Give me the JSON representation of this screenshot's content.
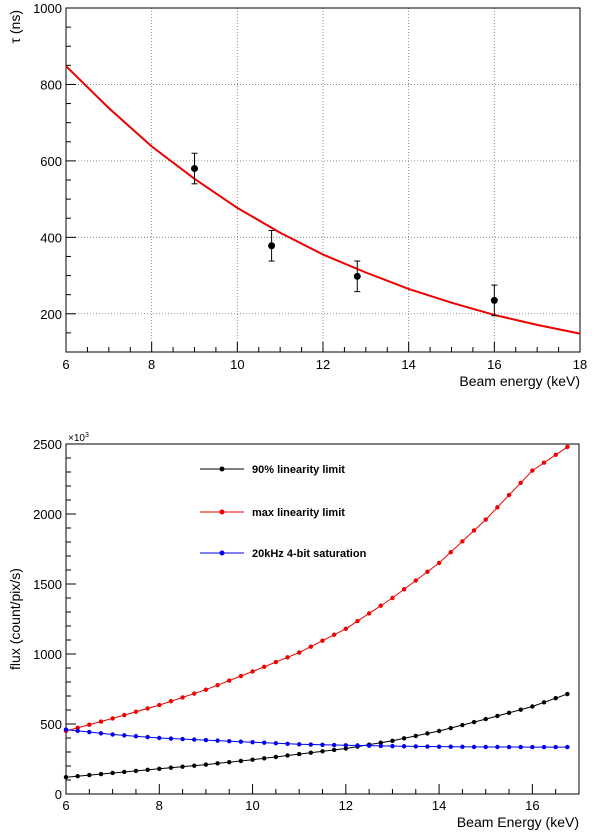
{
  "chart_data": [
    {
      "type": "scatter",
      "xlabel": "Beam energy (keV)",
      "ylabel": "τ (ns)",
      "xlim": [
        6,
        18
      ],
      "ylim": [
        100,
        1000
      ],
      "xticks": [
        6,
        8,
        10,
        12,
        14,
        16,
        18
      ],
      "yticks": [
        200,
        400,
        600,
        800,
        1000
      ],
      "grid": true,
      "series": [
        {
          "kind": "points-with-errors",
          "color": "#000000",
          "points": [
            {
              "x": 9.0,
              "y": 580,
              "err": 40
            },
            {
              "x": 10.8,
              "y": 378,
              "err": 40
            },
            {
              "x": 12.8,
              "y": 298,
              "err": 40
            },
            {
              "x": 16.0,
              "y": 235,
              "err": 40
            }
          ]
        },
        {
          "kind": "fit-curve",
          "color": "#ee0000",
          "x": [
            6,
            7,
            8,
            9,
            10,
            11,
            12,
            13,
            14,
            15,
            16,
            17,
            18
          ],
          "y": [
            848,
            738,
            638,
            553,
            477,
            412,
            355,
            308,
            265,
            229,
            197,
            171,
            148
          ]
        }
      ]
    },
    {
      "type": "line",
      "xlabel": "Beam Energy (keV)",
      "ylabel": "flux (count/pix/s)",
      "yexponent": {
        "base": "×10",
        "power": "3"
      },
      "xlim": [
        6,
        17
      ],
      "ylim": [
        0,
        2500
      ],
      "xticks": [
        6,
        8,
        10,
        12,
        14,
        16
      ],
      "yticks": [
        0,
        500,
        1000,
        1500,
        2000,
        2500
      ],
      "grid": false,
      "legend_position": "top-center",
      "x": [
        6,
        7,
        8,
        9,
        10,
        11,
        12,
        13,
        14,
        15,
        16,
        16.8
      ],
      "series": [
        {
          "name": "90% linearity limit",
          "color": "#000000",
          "values": [
            120,
            150,
            180,
            210,
            245,
            285,
            325,
            380,
            450,
            535,
            625,
            720
          ]
        },
        {
          "name": "max linearity limit",
          "color": "#ee0000",
          "values": [
            450,
            540,
            635,
            745,
            875,
            1010,
            1180,
            1400,
            1650,
            1960,
            2310,
            2490
          ]
        },
        {
          "name": "20kHz 4-bit saturation",
          "color": "#0000ee",
          "values": [
            460,
            425,
            400,
            385,
            370,
            355,
            348,
            342,
            338,
            336,
            335,
            335
          ]
        }
      ]
    }
  ]
}
